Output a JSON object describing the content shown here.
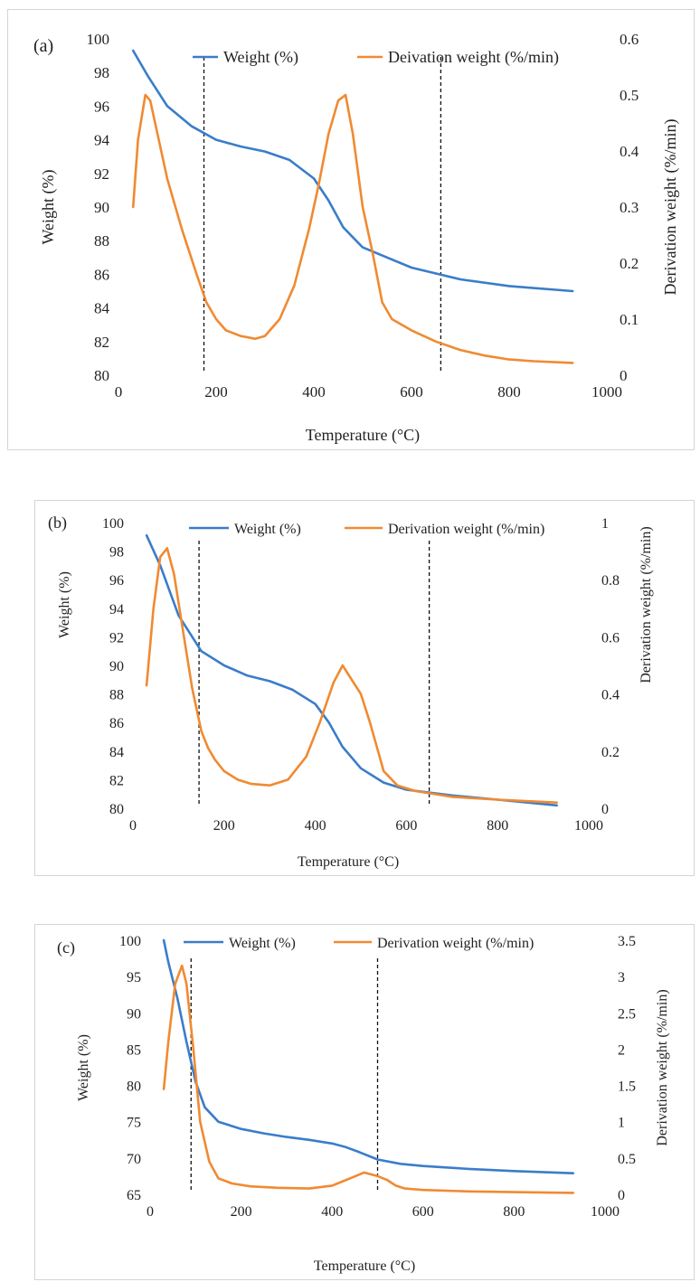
{
  "colors": {
    "weight": "#3a7dc9",
    "derivative": "#f08a32",
    "dashed": "#111111",
    "frame": "#d4d4d4"
  },
  "chart_data": [
    {
      "type": "line",
      "panel_label": "(a)",
      "xlabel": "Temperature (°C)",
      "ylabel": "Weight (%)",
      "y2label": "Derivation weight (%/min)",
      "xlim": [
        0,
        1000
      ],
      "xticks": [
        0,
        200,
        400,
        600,
        800,
        1000
      ],
      "ylim": [
        80,
        100
      ],
      "yticks": [
        80,
        82,
        84,
        86,
        88,
        90,
        92,
        94,
        96,
        98,
        100
      ],
      "y2lim": [
        0,
        0.6
      ],
      "y2ticks": [
        0,
        0.1,
        0.2,
        0.3,
        0.4,
        0.5,
        0.6
      ],
      "y2ticklabels": [
        "0",
        "0.1",
        "0.2",
        "0.3",
        "0.4",
        "0.5",
        "0.6"
      ],
      "legend_position": "top",
      "vlines": [
        175,
        660
      ],
      "series": [
        {
          "name": "Weight (%)",
          "axis": "left",
          "x": [
            30,
            60,
            100,
            150,
            200,
            250,
            300,
            350,
            400,
            430,
            460,
            500,
            550,
            600,
            700,
            800,
            930
          ],
          "y": [
            99.3,
            97.8,
            96.0,
            94.8,
            94.0,
            93.6,
            93.3,
            92.8,
            91.7,
            90.4,
            88.8,
            87.6,
            87.0,
            86.4,
            85.7,
            85.3,
            85.0
          ]
        },
        {
          "name": "Deivation weight (%/min)",
          "axis": "right",
          "x": [
            30,
            40,
            55,
            65,
            80,
            100,
            130,
            160,
            180,
            200,
            220,
            250,
            280,
            300,
            330,
            360,
            390,
            410,
            430,
            450,
            465,
            480,
            500,
            520,
            540,
            560,
            600,
            650,
            700,
            750,
            800,
            850,
            930
          ],
          "y": [
            0.3,
            0.42,
            0.5,
            0.49,
            0.43,
            0.35,
            0.26,
            0.18,
            0.13,
            0.1,
            0.08,
            0.07,
            0.065,
            0.07,
            0.1,
            0.16,
            0.26,
            0.34,
            0.43,
            0.49,
            0.5,
            0.43,
            0.3,
            0.22,
            0.13,
            0.1,
            0.08,
            0.06,
            0.045,
            0.035,
            0.028,
            0.025,
            0.022
          ]
        }
      ]
    },
    {
      "type": "line",
      "panel_label": "(b)",
      "xlabel": "Temperature (°C)",
      "ylabel": "Weight (%)",
      "y2label": "Derivation weight (%/min)",
      "xlim": [
        0,
        1000
      ],
      "xticks": [
        0,
        200,
        400,
        600,
        800,
        1000
      ],
      "ylim": [
        80,
        100
      ],
      "yticks": [
        80,
        82,
        84,
        86,
        88,
        90,
        92,
        94,
        96,
        98,
        100
      ],
      "y2lim": [
        0,
        1
      ],
      "y2ticks": [
        0,
        0.2,
        0.4,
        0.6,
        0.8,
        1
      ],
      "y2ticklabels": [
        "0",
        "0.2",
        "0.4",
        "0.6",
        "0.8",
        "1"
      ],
      "legend_position": "top",
      "vlines": [
        145,
        650
      ],
      "series": [
        {
          "name": "Weight (%)",
          "axis": "left",
          "x": [
            30,
            60,
            100,
            150,
            200,
            250,
            300,
            350,
            400,
            430,
            460,
            500,
            550,
            600,
            700,
            800,
            930
          ],
          "y": [
            99.1,
            97.0,
            93.5,
            91.0,
            90.0,
            89.3,
            88.9,
            88.3,
            87.3,
            86.0,
            84.3,
            82.8,
            81.8,
            81.3,
            80.9,
            80.6,
            80.2
          ]
        },
        {
          "name": "Derivation weight (%/min)",
          "axis": "right",
          "x": [
            30,
            45,
            60,
            75,
            90,
            110,
            130,
            150,
            165,
            180,
            200,
            230,
            260,
            300,
            340,
            380,
            410,
            440,
            460,
            480,
            500,
            520,
            550,
            580,
            620,
            700,
            800,
            930
          ],
          "y": [
            0.43,
            0.7,
            0.88,
            0.91,
            0.82,
            0.62,
            0.42,
            0.27,
            0.21,
            0.17,
            0.13,
            0.1,
            0.085,
            0.08,
            0.1,
            0.18,
            0.3,
            0.44,
            0.5,
            0.45,
            0.4,
            0.3,
            0.13,
            0.08,
            0.06,
            0.04,
            0.03,
            0.02
          ]
        }
      ]
    },
    {
      "type": "line",
      "panel_label": "(c)",
      "xlabel": "Temperature (°C)",
      "ylabel": "Weight (%)",
      "y2label": "Derivation weight (%/min)",
      "xlim": [
        0,
        1000
      ],
      "xticks": [
        0,
        200,
        400,
        600,
        800,
        1000
      ],
      "ylim": [
        65,
        100
      ],
      "yticks": [
        65,
        70,
        75,
        80,
        85,
        90,
        95,
        100
      ],
      "y2lim": [
        0,
        3.5
      ],
      "y2ticks": [
        0,
        0.5,
        1,
        1.5,
        2,
        2.5,
        3,
        3.5
      ],
      "y2ticklabels": [
        "0",
        "0.5",
        "1",
        "1.5",
        "2",
        "2.5",
        "3",
        "3.5"
      ],
      "legend_position": "top",
      "vlines": [
        90,
        500
      ],
      "series": [
        {
          "name": "Weight (%)",
          "axis": "left",
          "x": [
            30,
            40,
            60,
            80,
            100,
            120,
            150,
            200,
            250,
            300,
            350,
            400,
            430,
            460,
            500,
            550,
            600,
            700,
            800,
            930
          ],
          "y": [
            100,
            97.0,
            92.0,
            86.0,
            80.5,
            77.0,
            75.0,
            74.0,
            73.4,
            72.9,
            72.5,
            72.0,
            71.5,
            70.8,
            69.8,
            69.2,
            68.9,
            68.5,
            68.2,
            67.9
          ]
        },
        {
          "name": "Derivation weight (%/min)",
          "axis": "right",
          "x": [
            30,
            40,
            55,
            70,
            80,
            95,
            110,
            130,
            150,
            180,
            220,
            280,
            350,
            400,
            440,
            470,
            500,
            520,
            540,
            560,
            600,
            700,
            800,
            930
          ],
          "y": [
            1.45,
            2.1,
            2.9,
            3.15,
            2.9,
            2.0,
            1.0,
            0.45,
            0.22,
            0.15,
            0.11,
            0.09,
            0.08,
            0.12,
            0.22,
            0.3,
            0.25,
            0.2,
            0.12,
            0.08,
            0.06,
            0.04,
            0.03,
            0.02
          ]
        }
      ]
    }
  ]
}
